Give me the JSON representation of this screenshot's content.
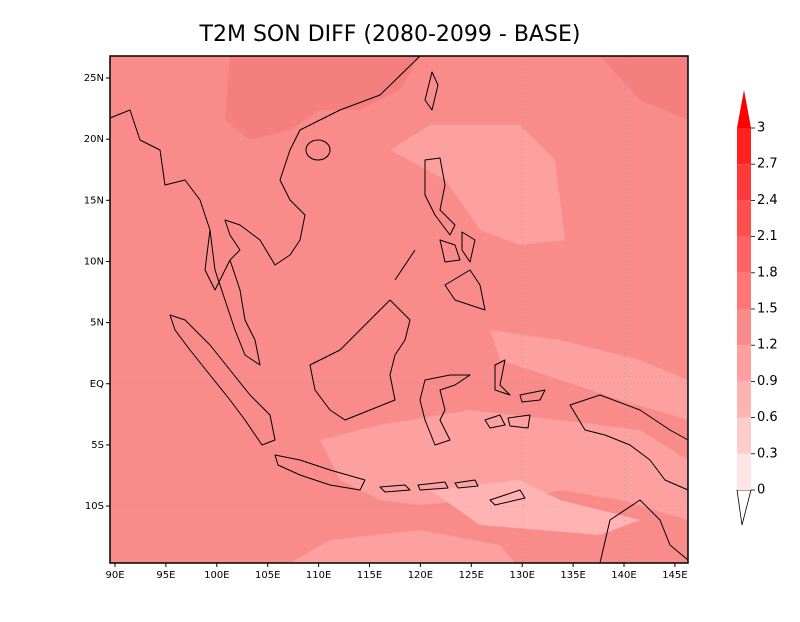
{
  "title": "T2M SON DIFF (2080-2099 - BASE)",
  "map": {
    "x_labels": [
      "90E",
      "95E",
      "100E",
      "105E",
      "110E",
      "115E",
      "120E",
      "125E",
      "130E",
      "135E",
      "140E",
      "145E"
    ],
    "y_labels": [
      "25N",
      "20N",
      "15N",
      "10N",
      "5N",
      "EQ",
      "5S",
      "10S"
    ]
  },
  "colorbar": {
    "levels": [
      0,
      0.3,
      0.6,
      0.9,
      1.2,
      1.5,
      1.8,
      2.1,
      2.4,
      2.7,
      3
    ],
    "colors": [
      "#ffffff",
      "#ffe6e6",
      "#ffcccc",
      "#ffb3b3",
      "#ff9f9f",
      "#f98b8b",
      "#ff7676",
      "#ff6262",
      "#ff4e4e",
      "#ff3a3a",
      "#ff2020",
      "#ff0000"
    ]
  }
}
